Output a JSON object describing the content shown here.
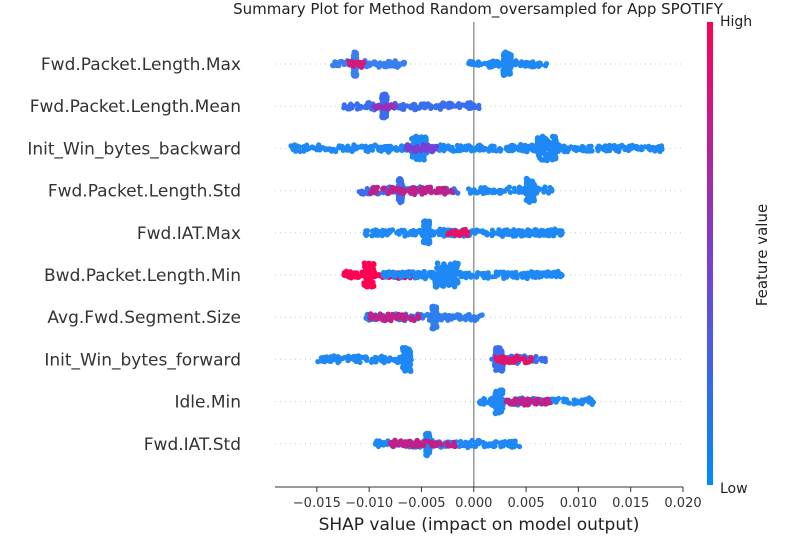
{
  "chart_data": {
    "type": "scatter",
    "subtype": "shap-beeswarm",
    "title": "Summary Plot for Method Random_oversampled for App SPOTIFY",
    "xlabel": "SHAP value (impact on model output)",
    "xlim": [
      -0.019,
      0.02
    ],
    "xticks": [
      {
        "value": -0.015,
        "label": "−0.015"
      },
      {
        "value": -0.01,
        "label": "−0.010"
      },
      {
        "value": -0.005,
        "label": "−0.005"
      },
      {
        "value": 0.0,
        "label": "0.000"
      },
      {
        "value": 0.005,
        "label": "0.005"
      },
      {
        "value": 0.01,
        "label": "0.010"
      },
      {
        "value": 0.015,
        "label": "0.015"
      },
      {
        "value": 0.02,
        "label": "0.020"
      }
    ],
    "colorbar": {
      "title": "Feature value",
      "high_label": "High",
      "low_label": "Low",
      "high_color": "#ff0052",
      "low_color": "#008bfb"
    },
    "features": [
      {
        "name": "Fwd.Packet.Length.Max",
        "clusters": [
          {
            "min": -0.0135,
            "max": -0.0066,
            "dense": [
              -0.0115,
              -0.0112
            ],
            "color": "#3a7ef0"
          },
          {
            "min": -0.012,
            "max": -0.0105,
            "color": "#d11a7a"
          },
          {
            "min": -0.0005,
            "max": 0.007,
            "dense": [
              0.0028,
              0.0036
            ],
            "color": "#1e88f5"
          }
        ]
      },
      {
        "name": "Fwd.Packet.Length.Mean",
        "clusters": [
          {
            "min": -0.0125,
            "max": 0.0005,
            "dense": [
              -0.0088,
              -0.0083
            ],
            "color": "#3a6ef0"
          },
          {
            "min": -0.0095,
            "max": -0.0075,
            "color": "#9a2fb8"
          }
        ]
      },
      {
        "name": "Init_Win_bytes_backward",
        "clusters": [
          {
            "min": -0.0175,
            "max": 0.018,
            "dense": [
              -0.006,
              -0.0045
            ],
            "color": "#1e88f5"
          },
          {
            "min": -0.0065,
            "max": -0.0035,
            "color": "#7a3fd0"
          },
          {
            "min": 0.003,
            "max": 0.009,
            "dense": [
              0.006,
              0.008
            ],
            "color": "#1e88f5"
          }
        ]
      },
      {
        "name": "Fwd.Packet.Length.Std",
        "clusters": [
          {
            "min": -0.011,
            "max": -0.0015,
            "dense": [
              -0.0072,
              -0.0068
            ],
            "color": "#3a6ef0"
          },
          {
            "min": -0.01,
            "max": -0.002,
            "color": "#c0208a"
          },
          {
            "min": -0.0005,
            "max": 0.0075,
            "dense": [
              0.005,
              0.0058
            ],
            "color": "#1e88f5"
          }
        ]
      },
      {
        "name": "Fwd.IAT.Max",
        "clusters": [
          {
            "min": -0.0105,
            "max": 0.0085,
            "dense": [
              -0.0048,
              -0.0042
            ],
            "color": "#1e88f5"
          },
          {
            "min": -0.0025,
            "max": -0.0005,
            "color": "#e0156a"
          },
          {
            "min": 0.003,
            "max": 0.008,
            "color": "#1e88f5"
          }
        ]
      },
      {
        "name": "Bwd.Packet.Length.Min",
        "clusters": [
          {
            "min": -0.0125,
            "max": -0.006,
            "dense": [
              -0.0105,
              -0.0095
            ],
            "color": "#ff0052"
          },
          {
            "min": -0.009,
            "max": 0.0085,
            "dense": [
              -0.004,
              -0.0015
            ],
            "color": "#1e88f5"
          }
        ]
      },
      {
        "name": "Avg.Fwd.Segment.Size",
        "clusters": [
          {
            "min": -0.0105,
            "max": 0.001,
            "dense": [
              -0.004,
              -0.0035
            ],
            "color": "#2f7ef0"
          },
          {
            "min": -0.01,
            "max": -0.005,
            "color": "#c0208a"
          }
        ]
      },
      {
        "name": "Init_Win_bytes_forward",
        "clusters": [
          {
            "min": -0.015,
            "max": -0.006,
            "dense": [
              -0.0068,
              -0.006
            ],
            "color": "#1e88f5"
          },
          {
            "min": 0.0015,
            "max": 0.007,
            "dense": [
              0.002,
              0.0028
            ],
            "color": "#3a6ef0"
          },
          {
            "min": 0.002,
            "max": 0.0055,
            "color": "#e0156a"
          }
        ]
      },
      {
        "name": "Idle.Min",
        "clusters": [
          {
            "min": 0.0005,
            "max": 0.0115,
            "dense": [
              0.002,
              0.0028
            ],
            "color": "#1e88f5"
          },
          {
            "min": 0.003,
            "max": 0.0075,
            "color": "#c0208a"
          }
        ]
      },
      {
        "name": "Fwd.IAT.Std",
        "clusters": [
          {
            "min": -0.0095,
            "max": 0.0045,
            "dense": [
              -0.0046,
              -0.0042
            ],
            "color": "#1e88f5"
          },
          {
            "min": -0.008,
            "max": -0.0015,
            "color": "#c0208a"
          }
        ]
      }
    ]
  }
}
